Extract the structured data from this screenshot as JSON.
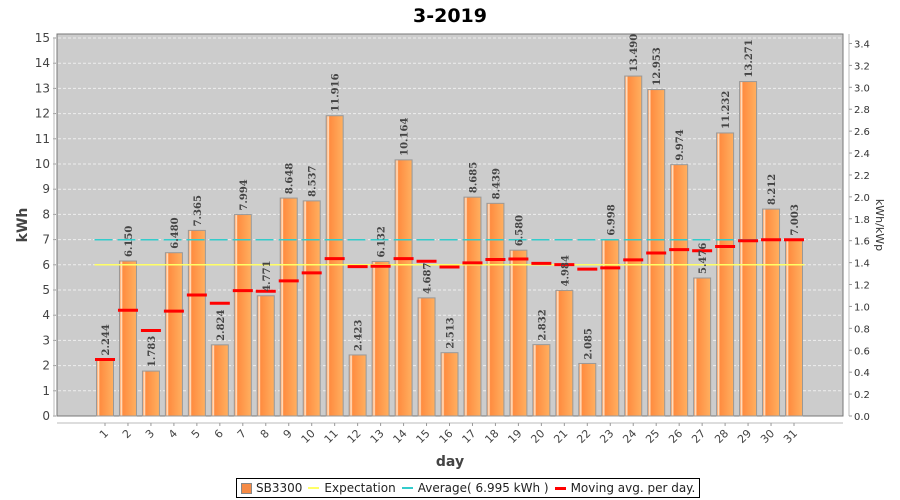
{
  "chart_data": {
    "type": "bar",
    "title": "3-2019",
    "xlabel": "day",
    "ylabel": "kWh",
    "y2label": "kWh/kWp",
    "ylim": [
      0,
      15
    ],
    "y2lim": [
      0,
      3.45
    ],
    "yticks": [
      "0",
      "1",
      "2",
      "3",
      "4",
      "5",
      "6",
      "7",
      "8",
      "9",
      "10",
      "11",
      "12",
      "13",
      "14",
      "15"
    ],
    "y2ticks": [
      "0.0",
      "0.2",
      "0.4",
      "0.6",
      "0.8",
      "1.0",
      "1.2",
      "1.4",
      "1.6",
      "1.8",
      "2.0",
      "2.2",
      "2.4",
      "2.6",
      "2.8",
      "3.0",
      "3.2",
      "3.4"
    ],
    "grid": true,
    "legend_position": "bottom",
    "categories": [
      "1",
      "2",
      "3",
      "4",
      "5",
      "6",
      "7",
      "8",
      "9",
      "10",
      "11",
      "12",
      "13",
      "14",
      "15",
      "16",
      "17",
      "18",
      "19",
      "20",
      "21",
      "22",
      "23",
      "24",
      "25",
      "26",
      "27",
      "28",
      "29",
      "30",
      "31"
    ],
    "series": [
      {
        "name": "SB3300",
        "type": "bar",
        "color": "#f58a45",
        "values": [
          2.244,
          6.15,
          1.783,
          6.48,
          7.365,
          2.824,
          7.994,
          4.771,
          8.648,
          8.537,
          11.916,
          2.423,
          6.132,
          10.164,
          4.687,
          2.513,
          8.685,
          8.439,
          6.58,
          2.832,
          4.984,
          2.085,
          6.998,
          13.49,
          12.953,
          9.974,
          5.476,
          11.232,
          13.271,
          8.212,
          7.003
        ],
        "labels": [
          "2.244",
          "6.150",
          "1.783",
          "6.480",
          "7.365",
          "2.824",
          "7.994",
          "4.771",
          "8.648",
          "8.537",
          "11.916",
          "2.423",
          "6.132",
          "10.164",
          "4.687",
          "2.513",
          "8.685",
          "8.439",
          "6.580",
          "2.832",
          "4.984",
          "2.085",
          "6.998",
          "13.490",
          "12.953",
          "9.974",
          "5.476",
          "11.232",
          "13.271",
          "8.212",
          "7.003"
        ]
      },
      {
        "name": "Expectation",
        "type": "line",
        "color": "#ffff66",
        "value": 6.0
      },
      {
        "name": "Average( 6.995 kWh )",
        "type": "line",
        "color": "#33cccc",
        "value": 6.995
      },
      {
        "name": "Moving avg. per day.",
        "type": "marker",
        "color": "#ff0000",
        "values": [
          2.244,
          4.197,
          3.392,
          4.164,
          4.804,
          4.474,
          4.977,
          4.951,
          5.362,
          5.679,
          6.246,
          5.927,
          5.943,
          6.245,
          6.141,
          5.914,
          6.077,
          6.208,
          6.228,
          6.058,
          6.007,
          5.829,
          5.88,
          6.197,
          6.467,
          6.602,
          6.56,
          6.727,
          6.953,
          6.995,
          6.995
        ]
      }
    ]
  },
  "legend": {
    "items": [
      "SB3300",
      "Expectation",
      "Average( 6.995 kWh )",
      "Moving avg. per day."
    ]
  }
}
